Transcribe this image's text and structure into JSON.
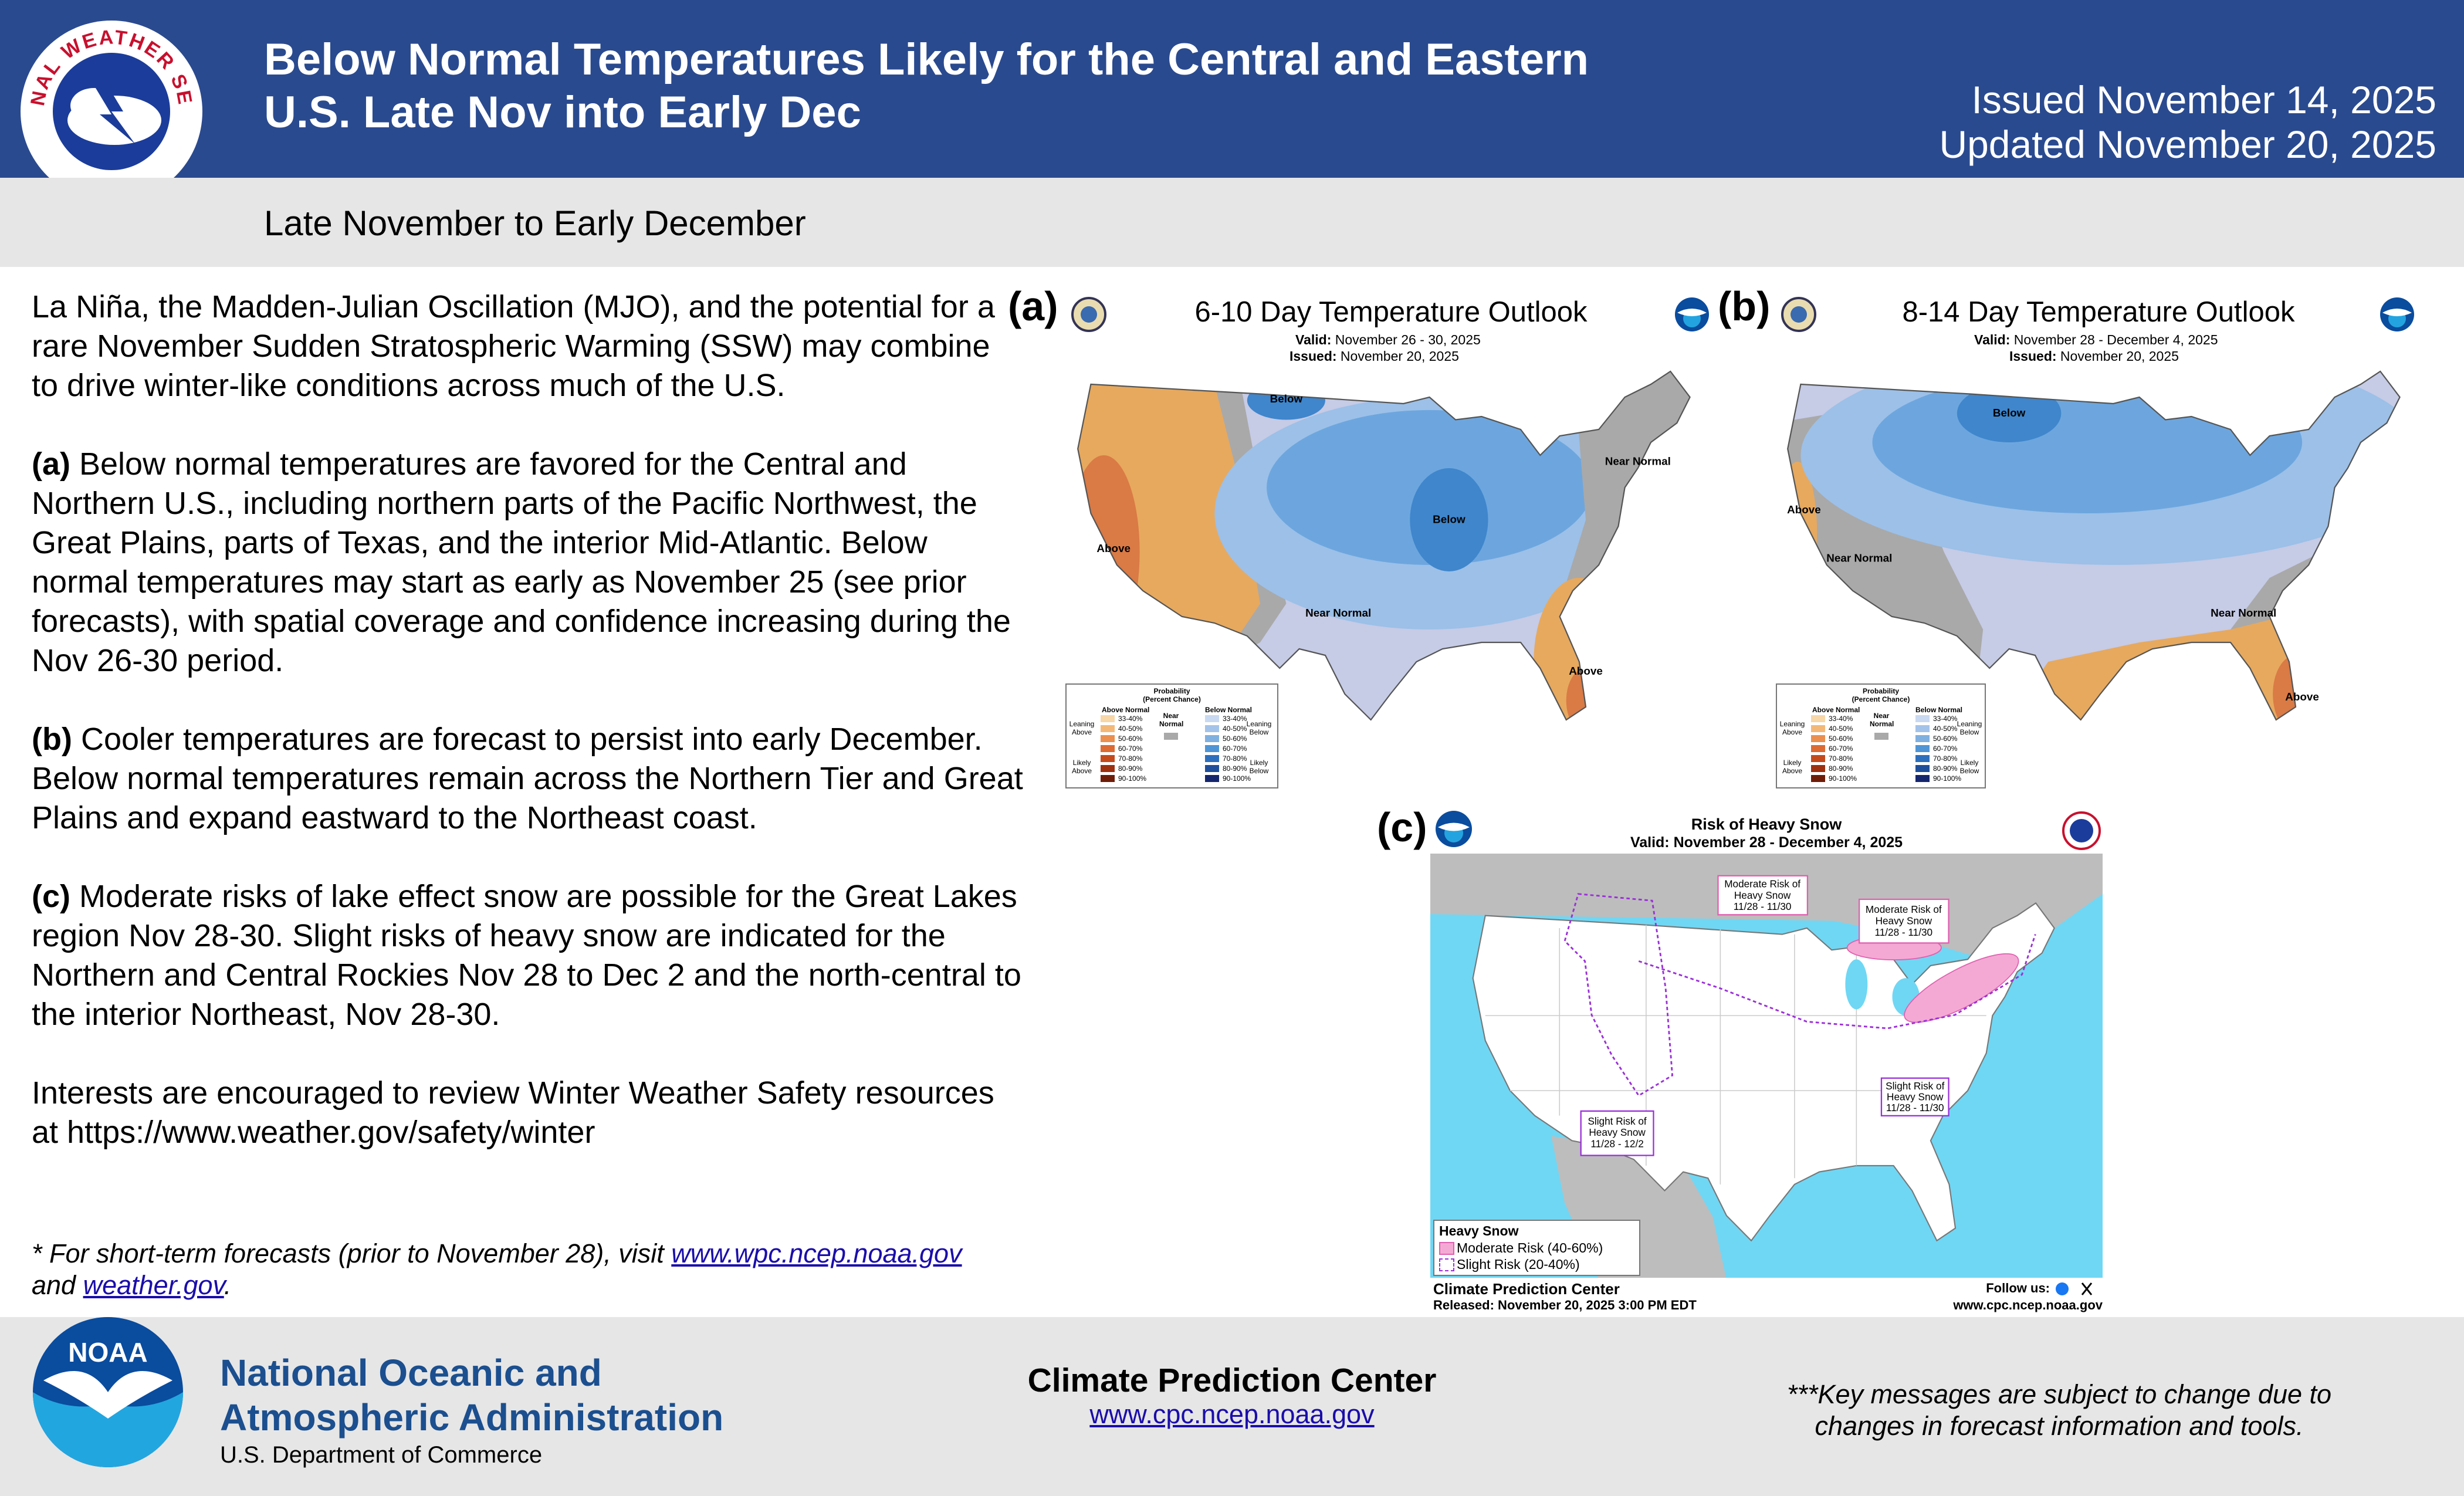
{
  "header": {
    "logo_text": "NATIONAL WEATHER SERVICE",
    "title_line1": "Below Normal Temperatures Likely for the Central and Eastern",
    "title_line2": "U.S. Late Nov into Early Dec",
    "issued": "Issued November 14, 2025",
    "updated": "Updated November 20, 2025"
  },
  "subtitle": "Late November to Early December",
  "body": {
    "intro": "La Niña, the Madden-Julian Oscillation (MJO), and the potential for a rare November Sudden Stratospheric Warming (SSW) may combine to drive winter-like conditions across much of the U.S.",
    "items": [
      {
        "label": "(a)",
        "text": " Below normal temperatures are favored for the Central and Northern U.S., including northern parts of the Pacific Northwest, the Great Plains, parts of Texas, and the interior Mid-Atlantic. Below normal temperatures may start as early as November 25 (see prior forecasts), with spatial coverage and confidence increasing during the Nov 26-30 period."
      },
      {
        "label": "(b)",
        "text": " Cooler temperatures are forecast to persist into early December. Below normal temperatures remain across the Northern Tier and Great Plains and expand eastward to the Northeast coast."
      },
      {
        "label": "(c)",
        "text": " Moderate risks of lake effect snow are possible for the Great Lakes region Nov 28-30. Slight risks of heavy snow are indicated for the Northern and Central Rockies Nov 28 to Dec 2 and the north-central to the interior Northeast, Nov 28-30."
      }
    ],
    "closing": "Interests are encouraged to review Winter Weather Safety resources at https://www.weather.gov/safety/winter"
  },
  "footnote": {
    "before": " * For short-term forecasts (prior to November 28), visit ",
    "link1": "www.wpc.ncep.noaa.gov",
    "middle": " and ",
    "link2": "weather.gov",
    "after": "."
  },
  "outlook_legend": {
    "title": "Probability",
    "subtitle": "(Percent Chance)",
    "above_header": "Above Normal",
    "near_header": "Near Normal",
    "below_header": "Below Normal",
    "ranges": [
      "33-40%",
      "40-50%",
      "50-60%",
      "60-70%",
      "70-80%",
      "80-90%",
      "90-100%"
    ],
    "leaning_above": "Leaning Above",
    "likely_above": "Likely Above",
    "leaning_below": "Leaning Below",
    "likely_below": "Likely Below"
  },
  "map_a": {
    "label": "(a)",
    "title": "6-10 Day Temperature Outlook",
    "valid_label": "Valid:",
    "valid": "November 26 - 30, 2025",
    "issued_label": "Issued:",
    "issued": "November 20, 2025",
    "regions": [
      "Below",
      "Below",
      "Above",
      "Near Normal",
      "Near Normal",
      "Above"
    ]
  },
  "map_b": {
    "label": "(b)",
    "title": "8-14 Day Temperature Outlook",
    "valid_label": "Valid:",
    "valid": "November 28 - December 4, 2025",
    "issued_label": "Issued:",
    "issued": "November 20, 2025",
    "regions": [
      "Below",
      "Above",
      "Near Normal",
      "Near Normal",
      "Above"
    ]
  },
  "map_c": {
    "label": "(c)",
    "title": "Risk of Heavy Snow",
    "valid": "Valid: November 28 - December 4, 2025",
    "callouts": [
      [
        "Moderate Risk of",
        "Heavy Snow",
        "11/28 - 11/30"
      ],
      [
        "Moderate Risk of",
        "Heavy Snow",
        "11/28 - 11/30"
      ],
      [
        "Slight Risk of",
        "Heavy Snow",
        "11/28 - 11/30"
      ],
      [
        "Slight Risk of",
        "Heavy Snow",
        "11/28 - 12/2"
      ]
    ],
    "legend_title": "Heavy Snow",
    "legend_moderate": "Moderate Risk (40-60%)",
    "legend_slight": "Slight Risk (20-40%)",
    "footer_name": "Climate Prediction Center",
    "released": "Released: November 20, 2025 3:00 PM EDT",
    "follow": "Follow us:",
    "url": "www.cpc.ncep.noaa.gov"
  },
  "footer": {
    "logo_text": "NOAA",
    "agency_line1": "National Oceanic and",
    "agency_line2": "Atmospheric Administration",
    "department": "U.S. Department of Commerce",
    "center": "Climate Prediction Center",
    "center_url": "www.cpc.ncep.noaa.gov",
    "disclaimer_line1": "***Key messages are subject to change due to",
    "disclaimer_line2": "changes in forecast information and tools."
  }
}
